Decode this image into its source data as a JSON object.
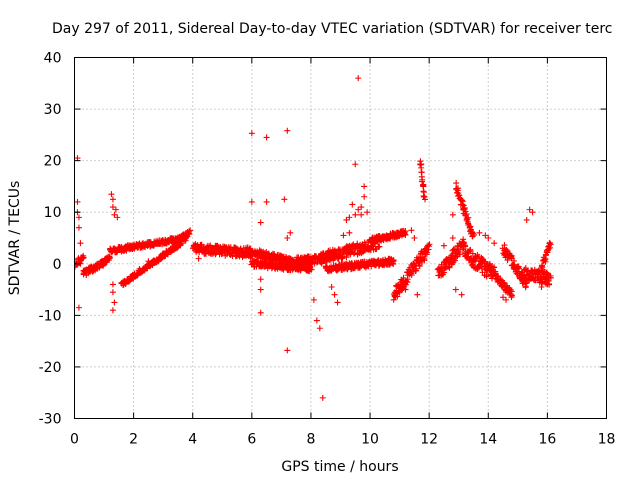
{
  "chart_data": {
    "type": "scatter",
    "title": "Day 297 of 2011, Sidereal Day-to-day VTEC variation (SDTVAR) for receiver terc",
    "xlabel": "GPS time / hours",
    "ylabel": "SDTVAR / TECUs",
    "xlim": [
      0,
      18
    ],
    "ylim": [
      -30,
      40
    ],
    "xticks": [
      "0",
      "2",
      "4",
      "6",
      "8",
      "10",
      "12",
      "14",
      "16",
      "18"
    ],
    "yticks": [
      "-30",
      "-20",
      "-10",
      "0",
      "10",
      "20",
      "30",
      "40"
    ],
    "grid": true,
    "marker": "+",
    "color": "#ff0000",
    "band_segments": [
      {
        "x0": 0.0,
        "x1": 0.3,
        "y0": 0.0,
        "y1": 1.0,
        "spread": 1.5
      },
      {
        "x0": 0.3,
        "x1": 1.2,
        "y0": -2.0,
        "y1": 1.0,
        "spread": 1.2
      },
      {
        "x0": 1.2,
        "x1": 3.8,
        "y0": 2.5,
        "y1": 5.0,
        "spread": 1.0
      },
      {
        "x0": 1.6,
        "x1": 3.6,
        "y0": -4.0,
        "y1": 4.0,
        "spread": 0.8
      },
      {
        "x0": 3.3,
        "x1": 3.9,
        "y0": 4.0,
        "y1": 6.0,
        "spread": 1.0
      },
      {
        "x0": 4.0,
        "x1": 6.0,
        "y0": 3.0,
        "y1": 2.0,
        "spread": 1.8
      },
      {
        "x0": 5.8,
        "x1": 7.6,
        "y0": 2.5,
        "y1": 0.0,
        "spread": 1.6
      },
      {
        "x0": 6.0,
        "x1": 8.0,
        "y0": 0.0,
        "y1": -1.0,
        "spread": 1.2
      },
      {
        "x0": 7.5,
        "x1": 8.6,
        "y0": 0.5,
        "y1": 1.0,
        "spread": 1.5
      },
      {
        "x0": 8.3,
        "x1": 10.3,
        "y0": 1.0,
        "y1": 4.0,
        "spread": 2.2
      },
      {
        "x0": 8.5,
        "x1": 10.8,
        "y0": -1.0,
        "y1": 0.5,
        "spread": 1.2
      },
      {
        "x0": 10.0,
        "x1": 11.2,
        "y0": 4.5,
        "y1": 6.0,
        "spread": 1.0
      },
      {
        "x0": 10.8,
        "x1": 12.0,
        "y0": -6.0,
        "y1": 3.0,
        "spread": 2.5
      },
      {
        "x0": 11.7,
        "x1": 11.85,
        "y0": 20.0,
        "y1": 12.0,
        "spread": 1.5
      },
      {
        "x0": 12.3,
        "x1": 13.2,
        "y0": -2.0,
        "y1": 4.0,
        "spread": 2.5
      },
      {
        "x0": 12.9,
        "x1": 13.5,
        "y0": 15.0,
        "y1": 5.0,
        "spread": 1.5
      },
      {
        "x0": 13.2,
        "x1": 14.2,
        "y0": 2.0,
        "y1": -2.0,
        "spread": 3.0
      },
      {
        "x0": 14.2,
        "x1": 14.8,
        "y0": -2.0,
        "y1": -6.0,
        "spread": 1.5
      },
      {
        "x0": 14.5,
        "x1": 15.3,
        "y0": 3.0,
        "y1": -4.0,
        "spread": 2.0
      },
      {
        "x0": 15.2,
        "x1": 16.1,
        "y0": -2.0,
        "y1": -3.0,
        "spread": 2.5
      },
      {
        "x0": 15.8,
        "x1": 16.1,
        "y0": -1.0,
        "y1": 4.0,
        "spread": 1.5
      }
    ],
    "points": [
      [
        0.1,
        20.5
      ],
      [
        0.1,
        12.0
      ],
      [
        0.1,
        10.0
      ],
      [
        0.15,
        9.0
      ],
      [
        0.15,
        7.0
      ],
      [
        0.2,
        4.0
      ],
      [
        0.15,
        -8.5
      ],
      [
        1.25,
        13.5
      ],
      [
        1.3,
        12.5
      ],
      [
        1.3,
        11.0
      ],
      [
        1.35,
        9.5
      ],
      [
        1.4,
        10.5
      ],
      [
        1.45,
        9.0
      ],
      [
        1.3,
        -4.0
      ],
      [
        1.3,
        -5.5
      ],
      [
        1.35,
        -7.5
      ],
      [
        1.3,
        -9.0
      ],
      [
        6.0,
        25.3
      ],
      [
        6.5,
        24.5
      ],
      [
        7.2,
        25.8
      ],
      [
        6.0,
        12.0
      ],
      [
        6.5,
        12.0
      ],
      [
        7.1,
        12.5
      ],
      [
        6.3,
        8.0
      ],
      [
        6.3,
        -3.0
      ],
      [
        6.3,
        -5.0
      ],
      [
        6.3,
        -9.5
      ],
      [
        7.2,
        5.0
      ],
      [
        7.3,
        6.0
      ],
      [
        7.2,
        -16.8
      ],
      [
        8.1,
        -7.0
      ],
      [
        8.2,
        -11.0
      ],
      [
        8.3,
        -12.5
      ],
      [
        8.4,
        -26.0
      ],
      [
        8.7,
        -4.5
      ],
      [
        8.8,
        -6.0
      ],
      [
        8.9,
        -7.5
      ],
      [
        9.6,
        36.0
      ],
      [
        9.5,
        19.3
      ],
      [
        9.8,
        15.0
      ],
      [
        9.8,
        13.0
      ],
      [
        9.7,
        11.0
      ],
      [
        9.6,
        10.5
      ],
      [
        9.4,
        11.5
      ],
      [
        9.2,
        8.5
      ],
      [
        9.3,
        9.0
      ],
      [
        9.5,
        9.5
      ],
      [
        9.9,
        10.0
      ],
      [
        9.7,
        9.5
      ],
      [
        9.1,
        5.5
      ],
      [
        9.3,
        6.0
      ],
      [
        11.5,
        5.0
      ],
      [
        11.4,
        6.5
      ],
      [
        11.6,
        -6.0
      ],
      [
        11.2,
        -5.0
      ],
      [
        11.0,
        -4.5
      ],
      [
        12.5,
        3.5
      ],
      [
        12.8,
        5.0
      ],
      [
        12.8,
        9.5
      ],
      [
        13.1,
        -6.0
      ],
      [
        12.9,
        -5.0
      ],
      [
        15.4,
        10.5
      ],
      [
        15.5,
        10.0
      ],
      [
        15.3,
        8.5
      ],
      [
        14.5,
        -6.5
      ],
      [
        14.6,
        -7.0
      ],
      [
        14.0,
        5.0
      ],
      [
        14.2,
        4.0
      ],
      [
        13.7,
        6.0
      ],
      [
        13.9,
        5.5
      ],
      [
        15.8,
        -4.5
      ],
      [
        16.0,
        -4.0
      ],
      [
        4.2,
        1.0
      ],
      [
        5.5,
        1.5
      ],
      [
        4.8,
        3.5
      ],
      [
        2.2,
        -1.0
      ],
      [
        2.5,
        0.5
      ],
      [
        3.0,
        2.0
      ],
      [
        5.0,
        2.0
      ]
    ]
  }
}
